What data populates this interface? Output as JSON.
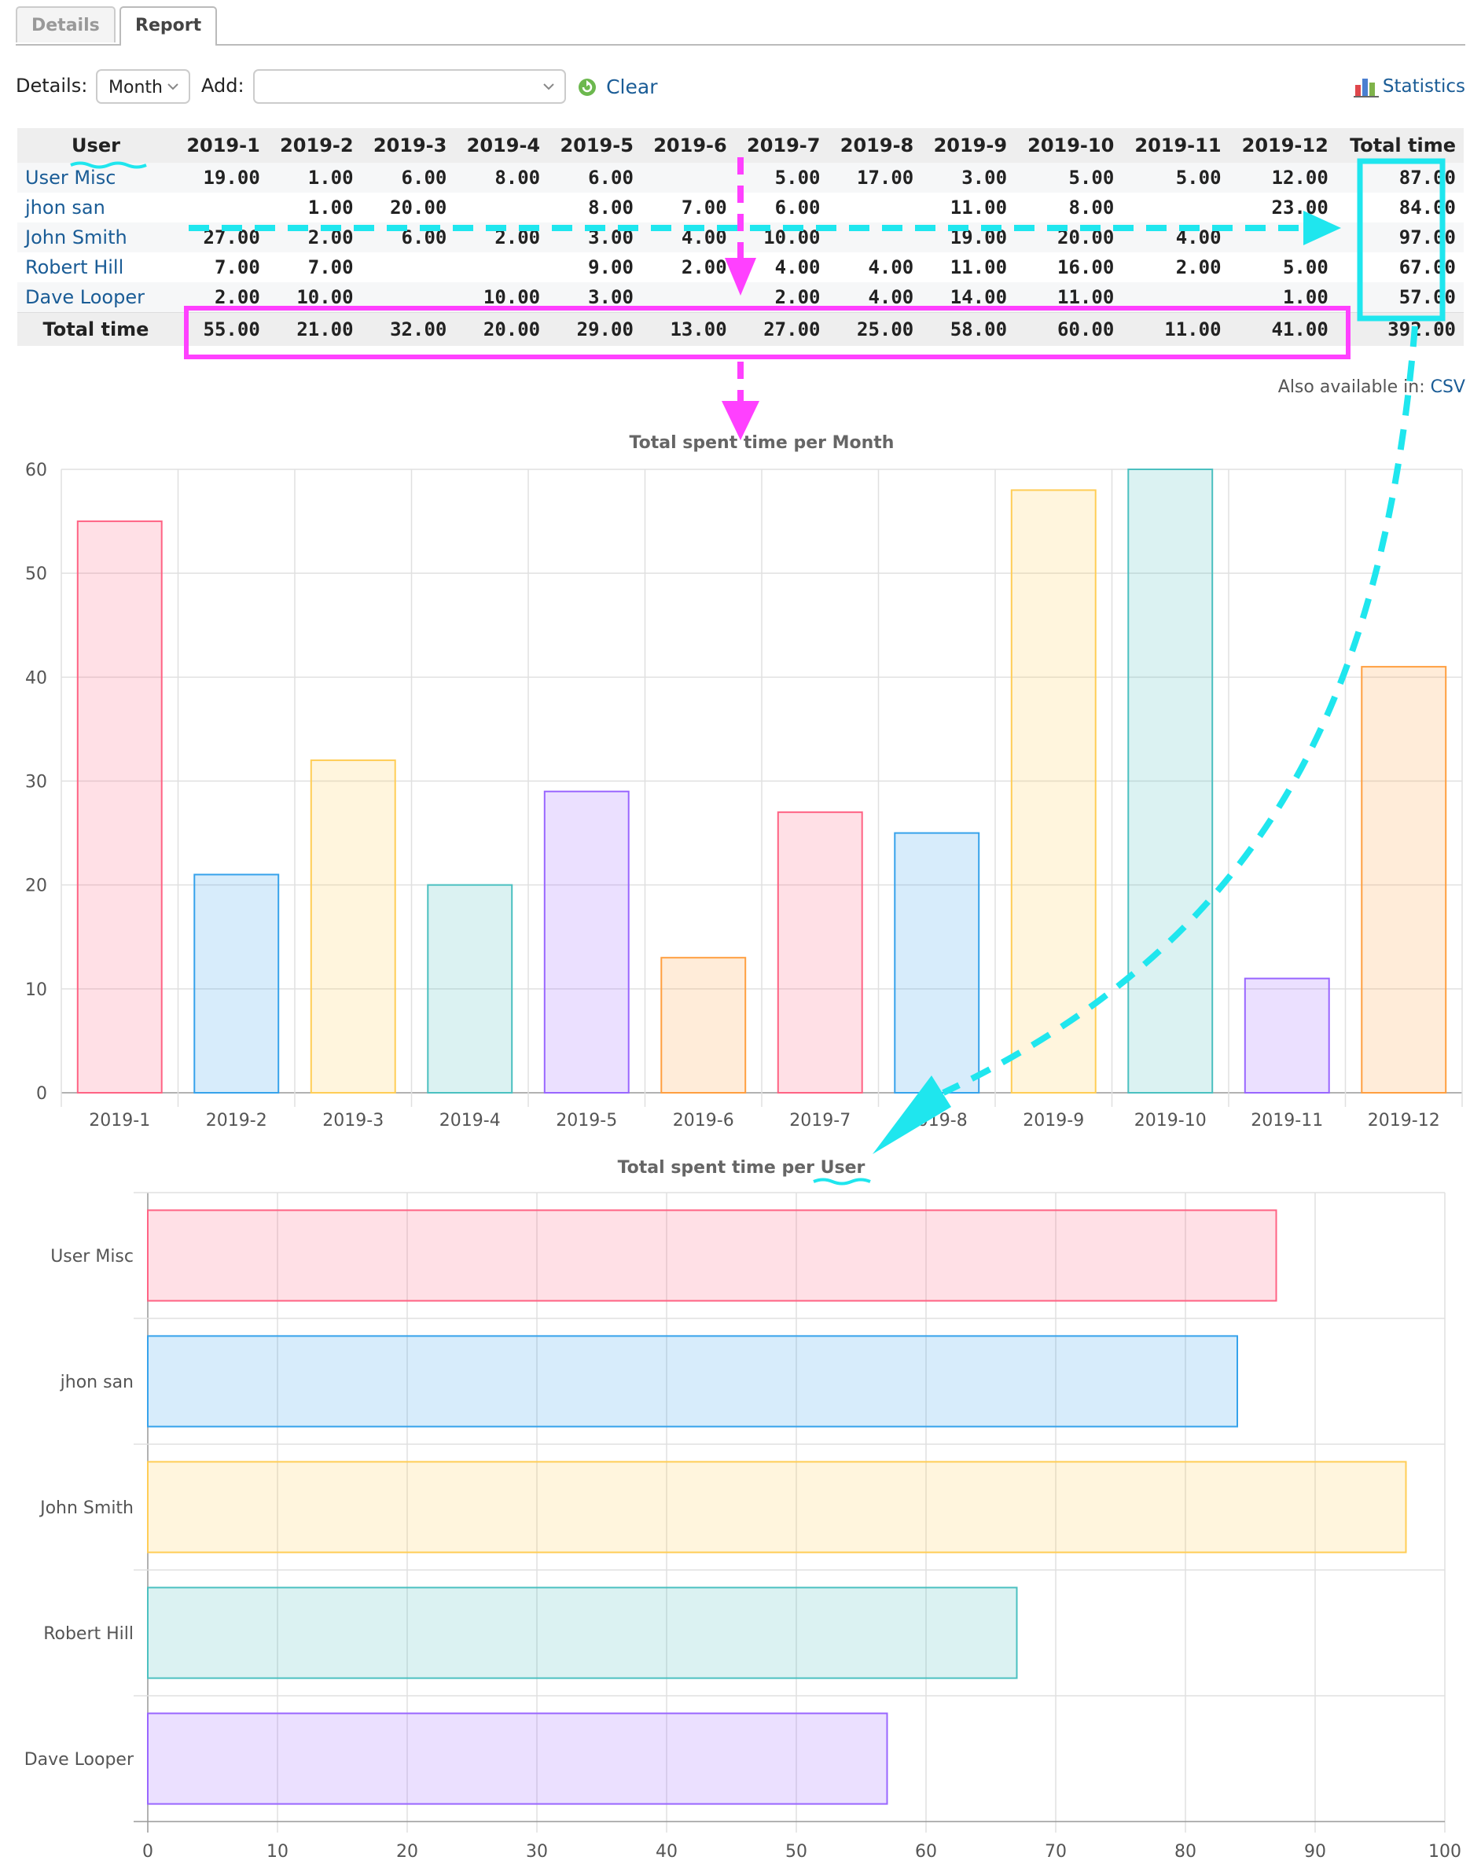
{
  "tabs": [
    {
      "label": "Details",
      "active": false
    },
    {
      "label": "Report",
      "active": true
    }
  ],
  "filters": {
    "details_label": "Details:",
    "details_value": "Month",
    "add_label": "Add:",
    "add_value": "",
    "clear_label": "Clear",
    "statistics_label": "Statistics"
  },
  "table": {
    "user_header": "User",
    "columns": [
      "2019-1",
      "2019-2",
      "2019-3",
      "2019-4",
      "2019-5",
      "2019-6",
      "2019-7",
      "2019-8",
      "2019-9",
      "2019-10",
      "2019-11",
      "2019-12"
    ],
    "total_header": "Total time",
    "rows": [
      {
        "user": "User Misc",
        "values": [
          "19.00",
          "1.00",
          "6.00",
          "8.00",
          "6.00",
          "",
          "5.00",
          "17.00",
          "3.00",
          "5.00",
          "5.00",
          "12.00"
        ],
        "total": "87.00"
      },
      {
        "user": "jhon san",
        "values": [
          "",
          "1.00",
          "20.00",
          "",
          "8.00",
          "7.00",
          "6.00",
          "",
          "11.00",
          "8.00",
          "",
          "23.00"
        ],
        "total": "84.00"
      },
      {
        "user": "John Smith",
        "values": [
          "27.00",
          "2.00",
          "6.00",
          "2.00",
          "3.00",
          "4.00",
          "10.00",
          "",
          "19.00",
          "20.00",
          "4.00",
          ""
        ],
        "total": "97.00"
      },
      {
        "user": "Robert Hill",
        "values": [
          "7.00",
          "7.00",
          "",
          "",
          "9.00",
          "2.00",
          "4.00",
          "4.00",
          "11.00",
          "16.00",
          "2.00",
          "5.00"
        ],
        "total": "67.00"
      },
      {
        "user": "Dave Looper",
        "values": [
          "2.00",
          "10.00",
          "",
          "10.00",
          "3.00",
          "",
          "2.00",
          "4.00",
          "14.00",
          "11.00",
          "",
          "1.00"
        ],
        "total": "57.00"
      }
    ],
    "total_row": {
      "label": "Total time",
      "values": [
        "55.00",
        "21.00",
        "32.00",
        "20.00",
        "29.00",
        "13.00",
        "27.00",
        "25.00",
        "58.00",
        "60.00",
        "11.00",
        "41.00"
      ],
      "total": "392.00"
    }
  },
  "also_available": {
    "text": "Also available in:",
    "csv": "CSV"
  },
  "chart_data": [
    {
      "type": "bar",
      "title": "Total spent time per Month",
      "categories": [
        "2019-1",
        "2019-2",
        "2019-3",
        "2019-4",
        "2019-5",
        "2019-6",
        "2019-7",
        "2019-8",
        "2019-9",
        "2019-10",
        "2019-11",
        "2019-12"
      ],
      "values": [
        55,
        21,
        32,
        20,
        29,
        13,
        27,
        25,
        58,
        60,
        11,
        41
      ],
      "ylim": [
        0,
        60
      ],
      "yticks": [
        0,
        10,
        20,
        30,
        40,
        50,
        60
      ],
      "grid": true,
      "colors": [
        "#ff6384",
        "#36a2eb",
        "#ffcd56",
        "#4bc0c0",
        "#9966ff",
        "#ff9f40",
        "#ff6384",
        "#36a2eb",
        "#ffcd56",
        "#4bc0c0",
        "#9966ff",
        "#ff9f40"
      ]
    },
    {
      "type": "bar",
      "orientation": "horizontal",
      "title": "Total spent time per User",
      "categories": [
        "User Misc",
        "jhon san",
        "John Smith",
        "Robert Hill",
        "Dave Looper"
      ],
      "values": [
        87,
        84,
        97,
        67,
        57
      ],
      "xlim": [
        0,
        100
      ],
      "xticks": [
        0,
        10,
        20,
        30,
        40,
        50,
        60,
        70,
        80,
        90,
        100
      ],
      "grid": true,
      "colors": [
        "#ff6384",
        "#36a2eb",
        "#ffcd56",
        "#4bc0c0",
        "#9966ff"
      ]
    }
  ],
  "annotation_colors": {
    "magenta": "#ff40ff",
    "cyan": "#1fe6ee"
  }
}
